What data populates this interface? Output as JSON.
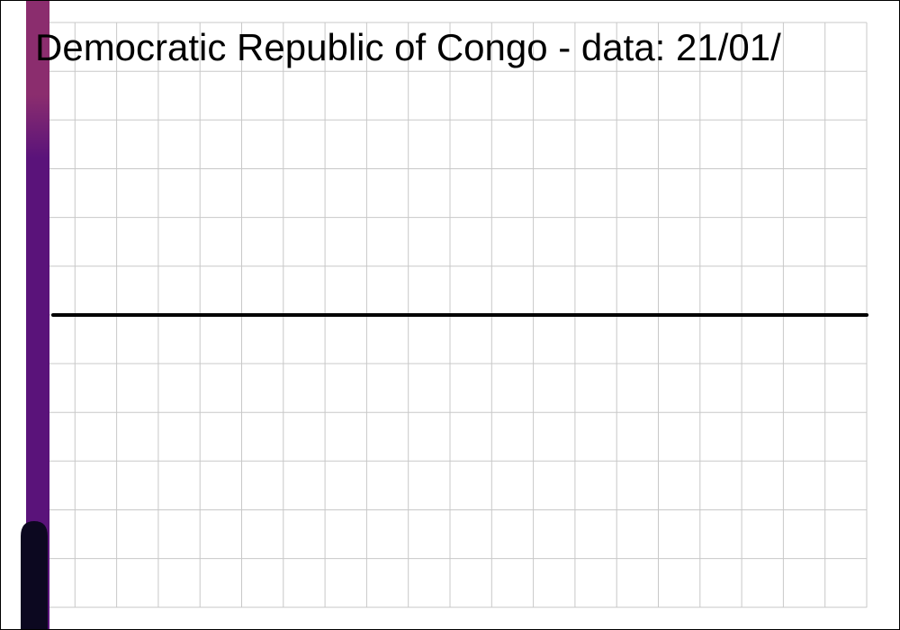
{
  "chart_data": {
    "type": "line",
    "title": "Democratic Republic of Congo  - data: 21/01/",
    "xlabel": "",
    "ylabel": "",
    "grid": true,
    "legend": "none",
    "series": [
      {
        "values": [
          0,
          0
        ]
      }
    ],
    "colors": {
      "line": "#000000",
      "grid": "#c8c8c8",
      "bar_top": "#8b2d6e",
      "bar_mid": "#5a137a",
      "bar_bottom": "#0c0820"
    }
  }
}
